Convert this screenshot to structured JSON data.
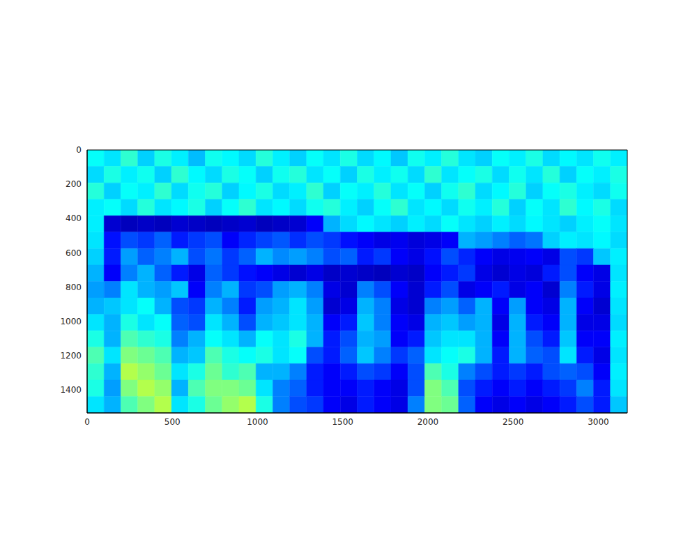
{
  "chart_data": {
    "type": "heatmap",
    "color": "jet",
    "xlim": [
      0,
      3170
    ],
    "ylim": [
      1536,
      0
    ],
    "xticks": [
      0,
      500,
      1000,
      1500,
      2000,
      2500,
      3000
    ],
    "yticks": [
      0,
      200,
      400,
      600,
      800,
      1000,
      1200,
      1400
    ],
    "color_range": [
      0,
      1
    ],
    "cells": [
      [
        0.38,
        0.35,
        0.42,
        0.33,
        0.4,
        0.36,
        0.31,
        0.39,
        0.37,
        0.34,
        0.41,
        0.36,
        0.33,
        0.38,
        0.35,
        0.4,
        0.34,
        0.37,
        0.32,
        0.39,
        0.36,
        0.41,
        0.35,
        0.33,
        0.38,
        0.36,
        0.4,
        0.34,
        0.37,
        0.35,
        0.39,
        0.36
      ],
      [
        0.34,
        0.4,
        0.36,
        0.39,
        0.33,
        0.42,
        0.37,
        0.34,
        0.4,
        0.38,
        0.33,
        0.39,
        0.41,
        0.35,
        0.38,
        0.33,
        0.4,
        0.36,
        0.39,
        0.34,
        0.42,
        0.35,
        0.38,
        0.4,
        0.34,
        0.39,
        0.35,
        0.41,
        0.33,
        0.38,
        0.36,
        0.4
      ],
      [
        0.41,
        0.33,
        0.38,
        0.36,
        0.42,
        0.34,
        0.39,
        0.41,
        0.33,
        0.37,
        0.4,
        0.34,
        0.36,
        0.42,
        0.33,
        0.38,
        0.36,
        0.41,
        0.35,
        0.38,
        0.33,
        0.39,
        0.42,
        0.34,
        0.37,
        0.41,
        0.33,
        0.38,
        0.4,
        0.36,
        0.34,
        0.39
      ],
      [
        0.36,
        0.38,
        0.34,
        0.41,
        0.35,
        0.37,
        0.4,
        0.33,
        0.38,
        0.42,
        0.35,
        0.37,
        0.34,
        0.39,
        0.41,
        0.36,
        0.33,
        0.38,
        0.42,
        0.35,
        0.37,
        0.34,
        0.39,
        0.36,
        0.41,
        0.33,
        0.38,
        0.35,
        0.42,
        0.37,
        0.4,
        0.34
      ],
      [
        0.36,
        0.08,
        0.06,
        0.07,
        0.06,
        0.08,
        0.07,
        0.06,
        0.07,
        0.08,
        0.06,
        0.07,
        0.08,
        0.12,
        0.3,
        0.34,
        0.37,
        0.35,
        0.33,
        0.36,
        0.34,
        0.38,
        0.35,
        0.33,
        0.36,
        0.34,
        0.37,
        0.35,
        0.33,
        0.36,
        0.38,
        0.35
      ],
      [
        0.35,
        0.14,
        0.2,
        0.18,
        0.22,
        0.15,
        0.18,
        0.2,
        0.12,
        0.16,
        0.19,
        0.21,
        0.17,
        0.2,
        0.18,
        0.14,
        0.12,
        0.1,
        0.11,
        0.09,
        0.1,
        0.12,
        0.3,
        0.28,
        0.25,
        0.22,
        0.24,
        0.33,
        0.36,
        0.35,
        0.37,
        0.34
      ],
      [
        0.33,
        0.15,
        0.28,
        0.22,
        0.25,
        0.3,
        0.2,
        0.24,
        0.18,
        0.22,
        0.3,
        0.26,
        0.28,
        0.25,
        0.2,
        0.22,
        0.15,
        0.18,
        0.12,
        0.1,
        0.14,
        0.2,
        0.16,
        0.12,
        0.1,
        0.11,
        0.12,
        0.1,
        0.2,
        0.18,
        0.32,
        0.36
      ],
      [
        0.3,
        0.12,
        0.25,
        0.3,
        0.22,
        0.15,
        0.1,
        0.22,
        0.18,
        0.14,
        0.12,
        0.1,
        0.08,
        0.1,
        0.07,
        0.08,
        0.07,
        0.06,
        0.08,
        0.07,
        0.12,
        0.15,
        0.18,
        0.1,
        0.08,
        0.1,
        0.09,
        0.15,
        0.2,
        0.12,
        0.1,
        0.35
      ],
      [
        0.28,
        0.25,
        0.35,
        0.3,
        0.28,
        0.32,
        0.12,
        0.25,
        0.3,
        0.18,
        0.2,
        0.28,
        0.3,
        0.25,
        0.1,
        0.08,
        0.25,
        0.2,
        0.12,
        0.08,
        0.15,
        0.2,
        0.1,
        0.12,
        0.15,
        0.1,
        0.12,
        0.08,
        0.25,
        0.15,
        0.1,
        0.36
      ],
      [
        0.3,
        0.32,
        0.35,
        0.38,
        0.3,
        0.2,
        0.18,
        0.3,
        0.25,
        0.15,
        0.28,
        0.3,
        0.35,
        0.28,
        0.08,
        0.1,
        0.3,
        0.25,
        0.1,
        0.08,
        0.25,
        0.28,
        0.22,
        0.3,
        0.12,
        0.28,
        0.12,
        0.1,
        0.3,
        0.12,
        0.08,
        0.35
      ],
      [
        0.35,
        0.3,
        0.4,
        0.35,
        0.38,
        0.22,
        0.2,
        0.35,
        0.3,
        0.2,
        0.3,
        0.32,
        0.35,
        0.3,
        0.12,
        0.15,
        0.32,
        0.25,
        0.12,
        0.1,
        0.3,
        0.32,
        0.28,
        0.3,
        0.1,
        0.3,
        0.15,
        0.12,
        0.3,
        0.1,
        0.1,
        0.34
      ],
      [
        0.4,
        0.3,
        0.45,
        0.42,
        0.4,
        0.25,
        0.3,
        0.38,
        0.35,
        0.3,
        0.38,
        0.35,
        0.4,
        0.3,
        0.15,
        0.2,
        0.3,
        0.28,
        0.12,
        0.15,
        0.32,
        0.35,
        0.35,
        0.3,
        0.12,
        0.3,
        0.2,
        0.15,
        0.32,
        0.12,
        0.12,
        0.36
      ],
      [
        0.45,
        0.35,
        0.5,
        0.48,
        0.45,
        0.3,
        0.32,
        0.45,
        0.4,
        0.38,
        0.4,
        0.35,
        0.38,
        0.2,
        0.15,
        0.22,
        0.32,
        0.25,
        0.18,
        0.22,
        0.35,
        0.38,
        0.4,
        0.3,
        0.15,
        0.3,
        0.22,
        0.2,
        0.35,
        0.15,
        0.1,
        0.35
      ],
      [
        0.42,
        0.3,
        0.55,
        0.52,
        0.48,
        0.35,
        0.4,
        0.48,
        0.42,
        0.45,
        0.3,
        0.3,
        0.25,
        0.15,
        0.12,
        0.15,
        0.2,
        0.18,
        0.12,
        0.2,
        0.45,
        0.4,
        0.25,
        0.2,
        0.15,
        0.18,
        0.15,
        0.2,
        0.22,
        0.2,
        0.12,
        0.36
      ],
      [
        0.4,
        0.28,
        0.5,
        0.55,
        0.52,
        0.3,
        0.45,
        0.5,
        0.5,
        0.48,
        0.35,
        0.25,
        0.22,
        0.15,
        0.12,
        0.12,
        0.15,
        0.12,
        0.1,
        0.2,
        0.5,
        0.45,
        0.2,
        0.15,
        0.12,
        0.15,
        0.12,
        0.15,
        0.18,
        0.25,
        0.15,
        0.35
      ],
      [
        0.35,
        0.3,
        0.45,
        0.5,
        0.55,
        0.35,
        0.4,
        0.48,
        0.52,
        0.55,
        0.4,
        0.25,
        0.2,
        0.18,
        0.12,
        0.1,
        0.15,
        0.12,
        0.1,
        0.25,
        0.5,
        0.48,
        0.22,
        0.12,
        0.1,
        0.12,
        0.1,
        0.12,
        0.15,
        0.2,
        0.15,
        0.32
      ]
    ]
  }
}
